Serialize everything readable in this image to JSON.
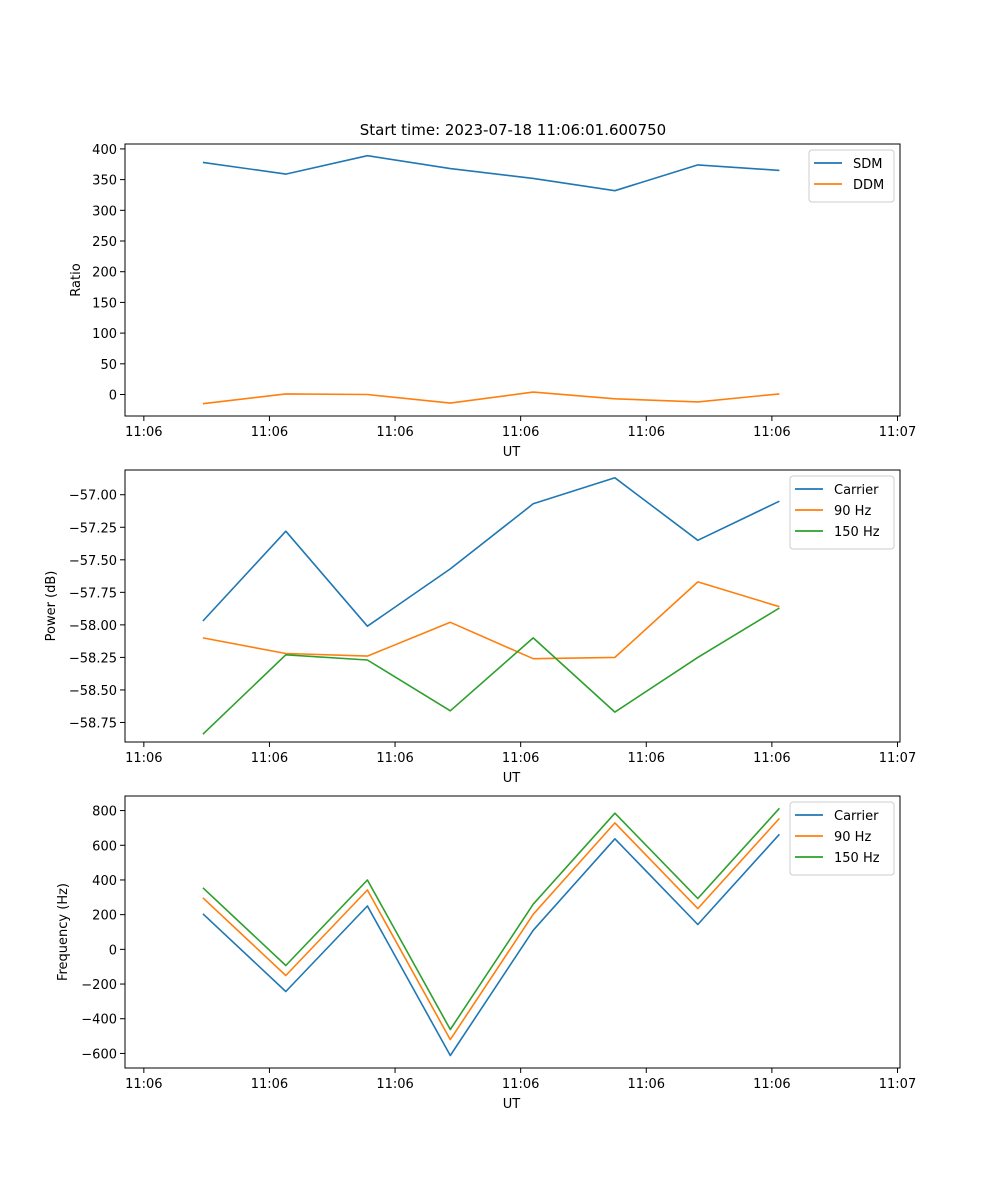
{
  "title": "Start time: 2023-07-18 11:06:01.600750",
  "colors": {
    "series1": "#1f77b4",
    "series2": "#ff7f0e",
    "series3": "#2ca02c"
  },
  "chart_data": [
    {
      "type": "line",
      "xlabel": "UT",
      "ylabel": "Ratio",
      "x_tick_labels": [
        "11:06",
        "11:06",
        "11:06",
        "11:06",
        "11:06",
        "11:06",
        "11:07"
      ],
      "x_ticks": [
        0,
        1,
        2,
        3,
        4,
        5,
        6
      ],
      "xlim": [
        -0.15,
        6.02
      ],
      "x": [
        0.47,
        1.13,
        1.78,
        2.44,
        3.1,
        3.75,
        4.41,
        5.06
      ],
      "ylim": [
        -35,
        408
      ],
      "yticks": [
        0,
        50,
        100,
        150,
        200,
        250,
        300,
        350,
        400
      ],
      "legend_position": "upper-right",
      "series": [
        {
          "name": "SDM",
          "values": [
            378,
            359,
            389,
            368,
            352,
            332,
            374,
            365
          ]
        },
        {
          "name": "DDM",
          "values": [
            -15,
            1,
            0,
            -14,
            4,
            -7,
            -12,
            1
          ]
        }
      ]
    },
    {
      "type": "line",
      "xlabel": "UT",
      "ylabel": "Power (dB)",
      "x_tick_labels": [
        "11:06",
        "11:06",
        "11:06",
        "11:06",
        "11:06",
        "11:06",
        "11:07"
      ],
      "x_ticks": [
        0,
        1,
        2,
        3,
        4,
        5,
        6
      ],
      "xlim": [
        -0.15,
        6.02
      ],
      "x": [
        0.47,
        1.13,
        1.78,
        2.44,
        3.1,
        3.75,
        4.41,
        5.06
      ],
      "ylim": [
        -58.9,
        -56.81
      ],
      "yticks": [
        -58.75,
        -58.5,
        -58.25,
        -58.0,
        -57.75,
        -57.5,
        -57.25,
        -57.0
      ],
      "ytick_labels": [
        "−58.75",
        "−58.50",
        "−58.25",
        "−58.00",
        "−57.75",
        "−57.50",
        "−57.25",
        "−57.00"
      ],
      "legend_position": "upper-right",
      "series": [
        {
          "name": "Carrier",
          "values": [
            -57.97,
            -57.28,
            -58.01,
            -57.57,
            -57.07,
            -56.87,
            -57.35,
            -57.05
          ]
        },
        {
          "name": "90 Hz",
          "values": [
            -58.1,
            -58.22,
            -58.24,
            -57.98,
            -58.26,
            -58.25,
            -57.67,
            -57.86
          ]
        },
        {
          "name": "150 Hz",
          "values": [
            -58.84,
            -58.23,
            -58.27,
            -58.66,
            -58.1,
            -58.67,
            -58.25,
            -57.87
          ]
        }
      ]
    },
    {
      "type": "line",
      "xlabel": "UT",
      "ylabel": "Frequency (Hz)",
      "x_tick_labels": [
        "11:06",
        "11:06",
        "11:06",
        "11:06",
        "11:06",
        "11:06",
        "11:07"
      ],
      "x_ticks": [
        0,
        1,
        2,
        3,
        4,
        5,
        6
      ],
      "xlim": [
        -0.15,
        6.02
      ],
      "x": [
        0.47,
        1.13,
        1.78,
        2.44,
        3.1,
        3.75,
        4.41,
        5.06
      ],
      "ylim": [
        -684,
        884
      ],
      "yticks": [
        -600,
        -400,
        -200,
        0,
        200,
        400,
        600,
        800
      ],
      "ytick_labels": [
        "−600",
        "−400",
        "−200",
        "0",
        "200",
        "400",
        "600",
        "800"
      ],
      "legend_position": "upper-right",
      "series": [
        {
          "name": "Carrier",
          "values": [
            205,
            -243,
            250,
            -612,
            110,
            637,
            143,
            663
          ]
        },
        {
          "name": "90 Hz",
          "values": [
            297,
            -151,
            342,
            -520,
            202,
            729,
            235,
            755
          ]
        },
        {
          "name": "150 Hz",
          "values": [
            355,
            -93,
            400,
            -462,
            260,
            785,
            293,
            813
          ]
        }
      ]
    }
  ]
}
